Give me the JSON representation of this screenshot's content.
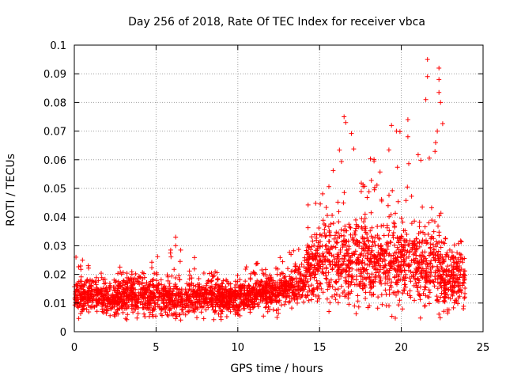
{
  "chart_data": {
    "type": "scatter",
    "title": "Day 256 of 2018, Rate Of TEC Index for receiver vbca",
    "xlabel": "GPS time / hours",
    "ylabel": "ROTI / TECUs",
    "xlim": [
      0,
      25
    ],
    "ylim": [
      0,
      0.1
    ],
    "xticks": [
      0,
      5,
      10,
      15,
      20,
      25
    ],
    "xtick_labels": [
      "0",
      "5",
      "10",
      "15",
      "20",
      "25"
    ],
    "yticks": [
      0,
      0.01,
      0.02,
      0.03,
      0.04,
      0.05,
      0.06,
      0.07,
      0.08,
      0.09,
      0.1
    ],
    "ytick_labels": [
      "0",
      "0.01",
      "0.02",
      "0.03",
      "0.04",
      "0.05",
      "0.06",
      "0.07",
      "0.08",
      "0.09",
      "0.1"
    ],
    "grid": true,
    "marker": "+",
    "series_color": "#ff0000",
    "profile": [
      {
        "x": 0.0,
        "center": 0.013,
        "spread": 0.004,
        "max": 0.026
      },
      {
        "x": 2.0,
        "center": 0.012,
        "spread": 0.004,
        "max": 0.022
      },
      {
        "x": 4.0,
        "center": 0.012,
        "spread": 0.005,
        "max": 0.024
      },
      {
        "x": 6.0,
        "center": 0.012,
        "spread": 0.005,
        "max": 0.034
      },
      {
        "x": 8.0,
        "center": 0.012,
        "spread": 0.004,
        "max": 0.022
      },
      {
        "x": 10.0,
        "center": 0.012,
        "spread": 0.004,
        "max": 0.023
      },
      {
        "x": 12.0,
        "center": 0.014,
        "spread": 0.004,
        "max": 0.025
      },
      {
        "x": 14.0,
        "center": 0.017,
        "spread": 0.005,
        "max": 0.03
      },
      {
        "x": 14.3,
        "center": 0.022,
        "spread": 0.009,
        "max": 0.045
      },
      {
        "x": 15.5,
        "center": 0.024,
        "spread": 0.01,
        "max": 0.055
      },
      {
        "x": 16.5,
        "center": 0.025,
        "spread": 0.011,
        "max": 0.075
      },
      {
        "x": 18.0,
        "center": 0.024,
        "spread": 0.01,
        "max": 0.06
      },
      {
        "x": 19.5,
        "center": 0.024,
        "spread": 0.011,
        "max": 0.072
      },
      {
        "x": 20.5,
        "center": 0.024,
        "spread": 0.01,
        "max": 0.074
      },
      {
        "x": 21.5,
        "center": 0.023,
        "spread": 0.01,
        "max": 0.095
      },
      {
        "x": 22.3,
        "center": 0.023,
        "spread": 0.011,
        "max": 0.093
      },
      {
        "x": 23.0,
        "center": 0.018,
        "spread": 0.007,
        "max": 0.034
      },
      {
        "x": 23.9,
        "center": 0.018,
        "spread": 0.007,
        "max": 0.033
      }
    ],
    "notable_points": [
      {
        "x": 0.1,
        "y": 0.026
      },
      {
        "x": 0.5,
        "y": 0.025
      },
      {
        "x": 6.2,
        "y": 0.033
      },
      {
        "x": 6.2,
        "y": 0.03
      },
      {
        "x": 12.4,
        "y": 0.005
      },
      {
        "x": 16.5,
        "y": 0.075
      },
      {
        "x": 16.6,
        "y": 0.073
      },
      {
        "x": 19.4,
        "y": 0.072
      },
      {
        "x": 19.7,
        "y": 0.07
      },
      {
        "x": 20.4,
        "y": 0.074
      },
      {
        "x": 20.4,
        "y": 0.068
      },
      {
        "x": 21.6,
        "y": 0.095
      },
      {
        "x": 21.6,
        "y": 0.089
      },
      {
        "x": 22.3,
        "y": 0.092
      },
      {
        "x": 22.3,
        "y": 0.088
      },
      {
        "x": 22.4,
        "y": 0.08
      },
      {
        "x": 22.2,
        "y": 0.07
      },
      {
        "x": 21.5,
        "y": 0.081
      },
      {
        "x": 22.1,
        "y": 0.066
      }
    ],
    "n_points": 3200,
    "seed": 256
  }
}
